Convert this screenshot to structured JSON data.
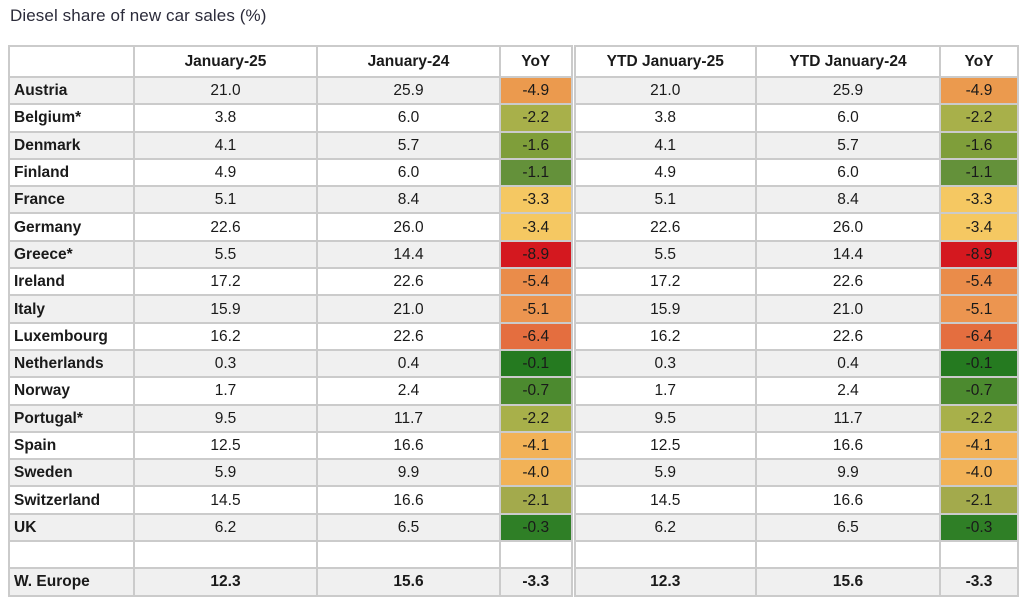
{
  "title": "Diesel share of new car sales (%)",
  "headers": [
    "",
    "January-25",
    "January-24",
    "YoY",
    "YTD January-25",
    "YTD January-24",
    "YoY"
  ],
  "rows": [
    {
      "country": "Austria",
      "jan25": "21.0",
      "jan24": "25.9",
      "yoy": "-4.9",
      "ytd25": "21.0",
      "ytd24": "25.9",
      "ytd_yoy": "-4.9",
      "color": "#eb9a4e"
    },
    {
      "country": "Belgium*",
      "jan25": "3.8",
      "jan24": "6.0",
      "yoy": "-2.2",
      "ytd25": "3.8",
      "ytd24": "6.0",
      "ytd_yoy": "-2.2",
      "color": "#a8b04a"
    },
    {
      "country": "Denmark",
      "jan25": "4.1",
      "jan24": "5.7",
      "yoy": "-1.6",
      "ytd25": "4.1",
      "ytd24": "5.7",
      "ytd_yoy": "-1.6",
      "color": "#7f9e3a"
    },
    {
      "country": "Finland",
      "jan25": "4.9",
      "jan24": "6.0",
      "yoy": "-1.1",
      "ytd25": "4.9",
      "ytd24": "6.0",
      "ytd_yoy": "-1.1",
      "color": "#64913a"
    },
    {
      "country": "France",
      "jan25": "5.1",
      "jan24": "8.4",
      "yoy": "-3.3",
      "ytd25": "5.1",
      "ytd24": "8.4",
      "ytd_yoy": "-3.3",
      "color": "#f5c862"
    },
    {
      "country": "Germany",
      "jan25": "22.6",
      "jan24": "26.0",
      "yoy": "-3.4",
      "ytd25": "22.6",
      "ytd24": "26.0",
      "ytd_yoy": "-3.4",
      "color": "#f5c862"
    },
    {
      "country": "Greece*",
      "jan25": "5.5",
      "jan24": "14.4",
      "yoy": "-8.9",
      "ytd25": "5.5",
      "ytd24": "14.4",
      "ytd_yoy": "-8.9",
      "color": "#d4181f"
    },
    {
      "country": "Ireland",
      "jan25": "17.2",
      "jan24": "22.6",
      "yoy": "-5.4",
      "ytd25": "17.2",
      "ytd24": "22.6",
      "ytd_yoy": "-5.4",
      "color": "#ea8c4a"
    },
    {
      "country": "Italy",
      "jan25": "15.9",
      "jan24": "21.0",
      "yoy": "-5.1",
      "ytd25": "15.9",
      "ytd24": "21.0",
      "ytd_yoy": "-5.1",
      "color": "#ec9550"
    },
    {
      "country": "Luxembourg",
      "jan25": "16.2",
      "jan24": "22.6",
      "yoy": "-6.4",
      "ytd25": "16.2",
      "ytd24": "22.6",
      "ytd_yoy": "-6.4",
      "color": "#e46e3f"
    },
    {
      "country": "Netherlands",
      "jan25": "0.3",
      "jan24": "0.4",
      "yoy": "-0.1",
      "ytd25": "0.3",
      "ytd24": "0.4",
      "ytd_yoy": "-0.1",
      "color": "#257a20"
    },
    {
      "country": "Norway",
      "jan25": "1.7",
      "jan24": "2.4",
      "yoy": "-0.7",
      "ytd25": "1.7",
      "ytd24": "2.4",
      "ytd_yoy": "-0.7",
      "color": "#4c8a2f"
    },
    {
      "country": "Portugal*",
      "jan25": "9.5",
      "jan24": "11.7",
      "yoy": "-2.2",
      "ytd25": "9.5",
      "ytd24": "11.7",
      "ytd_yoy": "-2.2",
      "color": "#a8b04a"
    },
    {
      "country": "Spain",
      "jan25": "12.5",
      "jan24": "16.6",
      "yoy": "-4.1",
      "ytd25": "12.5",
      "ytd24": "16.6",
      "ytd_yoy": "-4.1",
      "color": "#f2b257"
    },
    {
      "country": "Sweden",
      "jan25": "5.9",
      "jan24": "9.9",
      "yoy": "-4.0",
      "ytd25": "5.9",
      "ytd24": "9.9",
      "ytd_yoy": "-4.0",
      "color": "#f2b257"
    },
    {
      "country": "Switzerland",
      "jan25": "14.5",
      "jan24": "16.6",
      "yoy": "-2.1",
      "ytd25": "14.5",
      "ytd24": "16.6",
      "ytd_yoy": "-2.1",
      "color": "#a3aa4c"
    },
    {
      "country": "UK",
      "jan25": "6.2",
      "jan24": "6.5",
      "yoy": "-0.3",
      "ytd25": "6.2",
      "ytd24": "6.5",
      "ytd_yoy": "-0.3",
      "color": "#2f7f26"
    }
  ],
  "total": {
    "country": "W. Europe",
    "jan25": "12.3",
    "jan24": "15.6",
    "yoy": "-3.3",
    "ytd25": "12.3",
    "ytd24": "15.6",
    "ytd_yoy": "-3.3"
  }
}
